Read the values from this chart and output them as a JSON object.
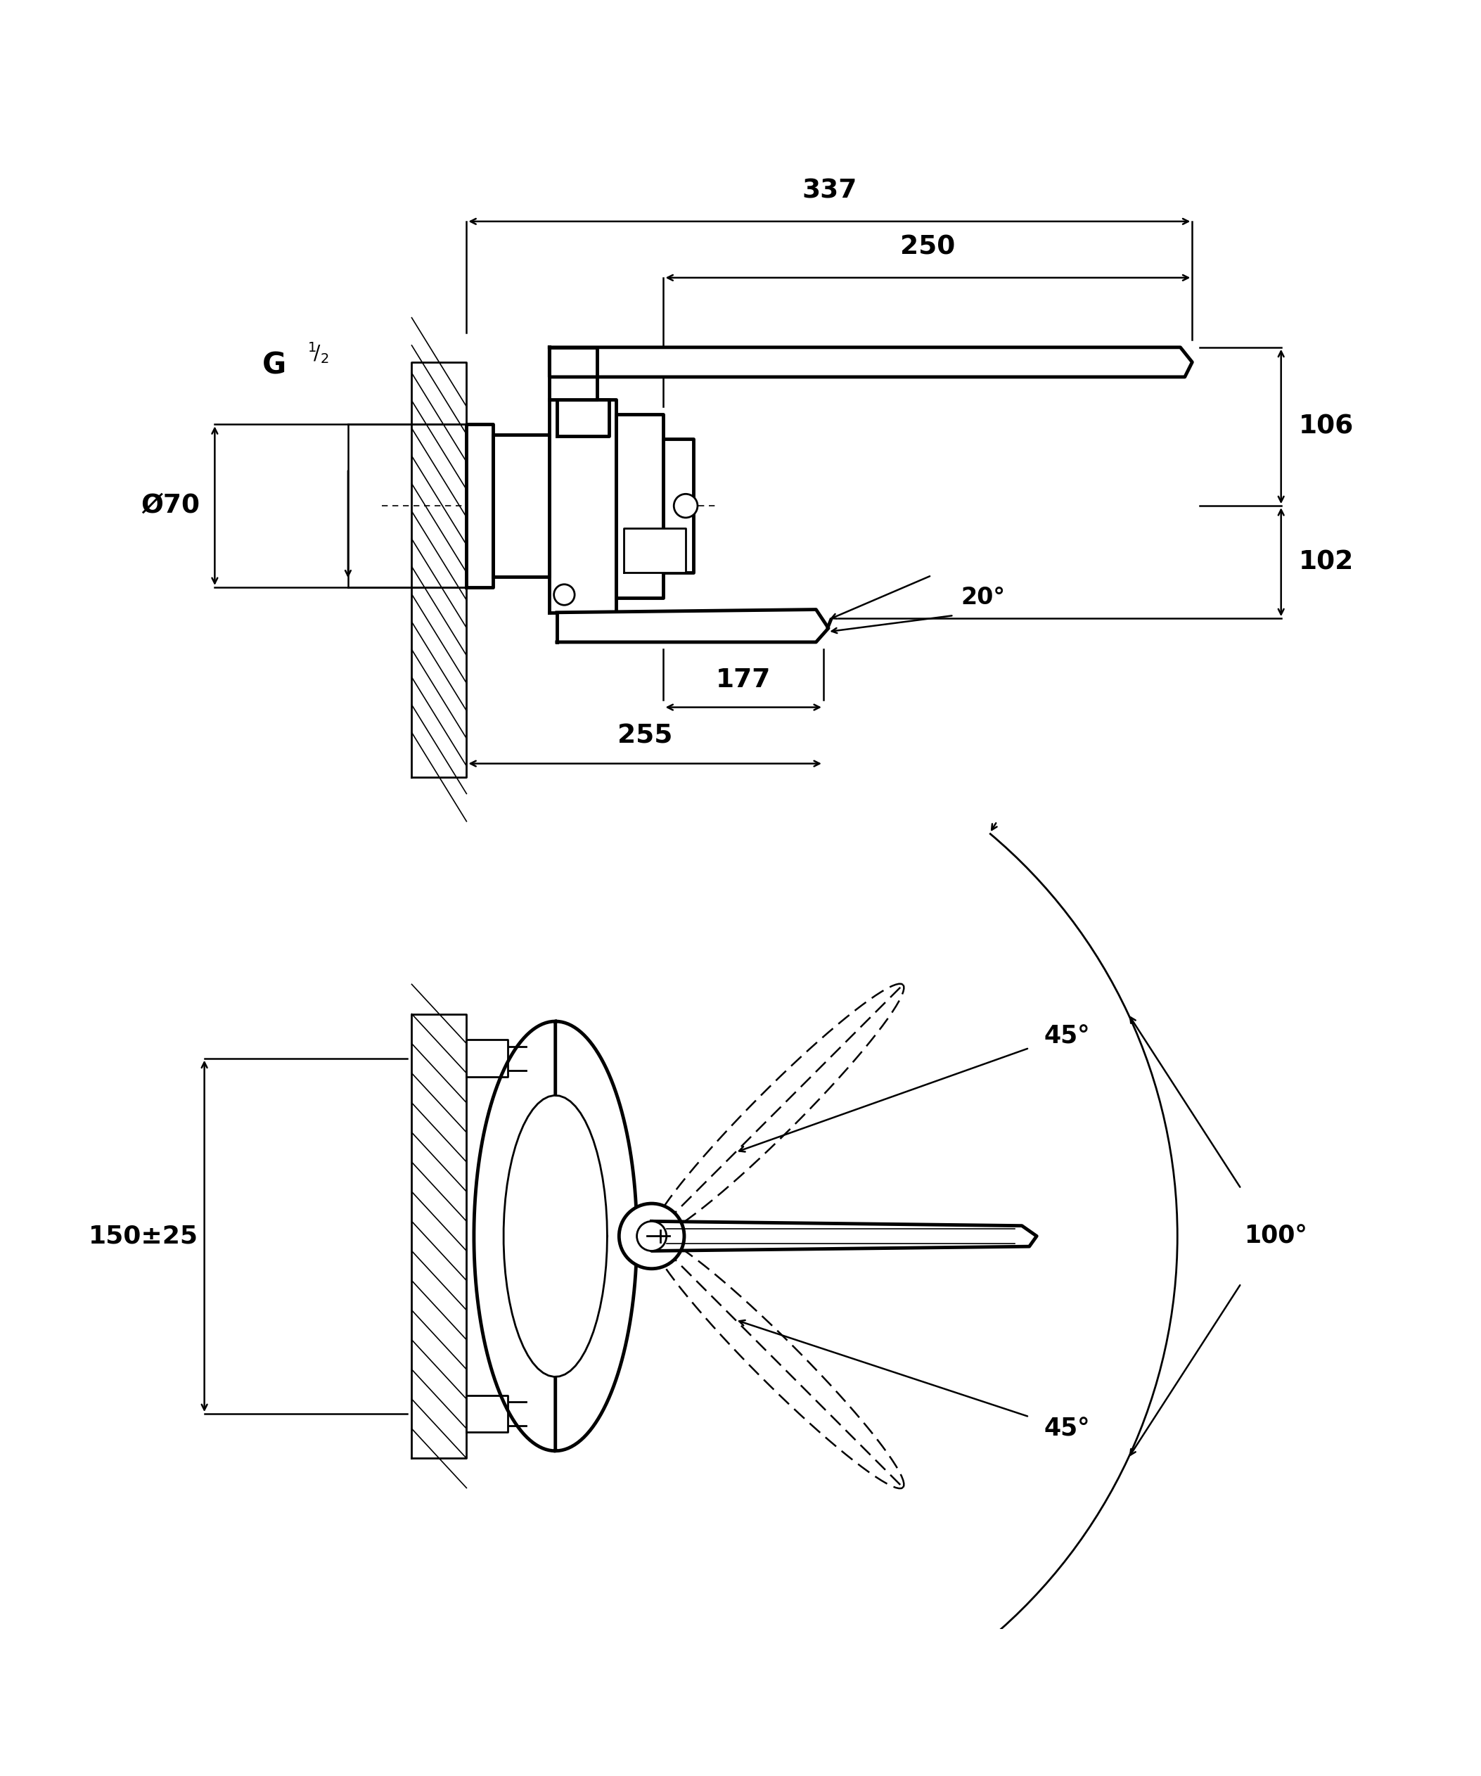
{
  "bg_color": "#ffffff",
  "line_color": "#000000",
  "fig_width": 21.06,
  "fig_height": 25.25,
  "lw_thick": 3.5,
  "lw_main": 2.0,
  "lw_dim": 1.8,
  "lw_thin": 1.2
}
